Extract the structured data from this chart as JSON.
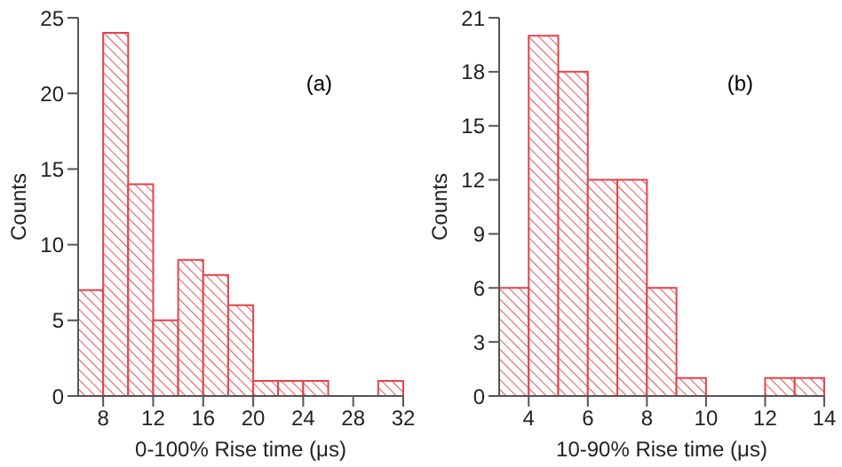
{
  "chart_data": [
    {
      "type": "histogram",
      "xlabel": "0-100% Rise time (μs)",
      "ylabel": "Counts",
      "annotations": [
        "(a)"
      ],
      "color": "#e5434b",
      "bins": [
        6,
        8,
        10,
        12,
        14,
        16,
        18,
        20,
        22,
        24,
        26,
        28,
        30,
        32
      ],
      "values": [
        7,
        24,
        14,
        5,
        9,
        8,
        6,
        1,
        1,
        1,
        0,
        0,
        1
      ],
      "xlim": [
        6,
        32
      ],
      "xticks": [
        8,
        12,
        16,
        20,
        24,
        28,
        32
      ],
      "ylim": [
        0,
        25
      ],
      "yticks": [
        0,
        5,
        10,
        15,
        20,
        25
      ]
    },
    {
      "type": "histogram",
      "xlabel": "10-90% Rise time (μs)",
      "ylabel": "Counts",
      "annotations": [
        "(b)"
      ],
      "color": "#e5434b",
      "bins": [
        3,
        4,
        5,
        6,
        7,
        8,
        9,
        10,
        11,
        12,
        13,
        14
      ],
      "values": [
        6,
        20,
        18,
        12,
        12,
        6,
        1,
        0,
        0,
        1,
        1
      ],
      "xlim": [
        3,
        14
      ],
      "xticks": [
        4,
        6,
        8,
        10,
        12,
        14
      ],
      "ylim": [
        0,
        21
      ],
      "yticks": [
        0,
        3,
        6,
        9,
        12,
        15,
        18,
        21
      ]
    }
  ]
}
